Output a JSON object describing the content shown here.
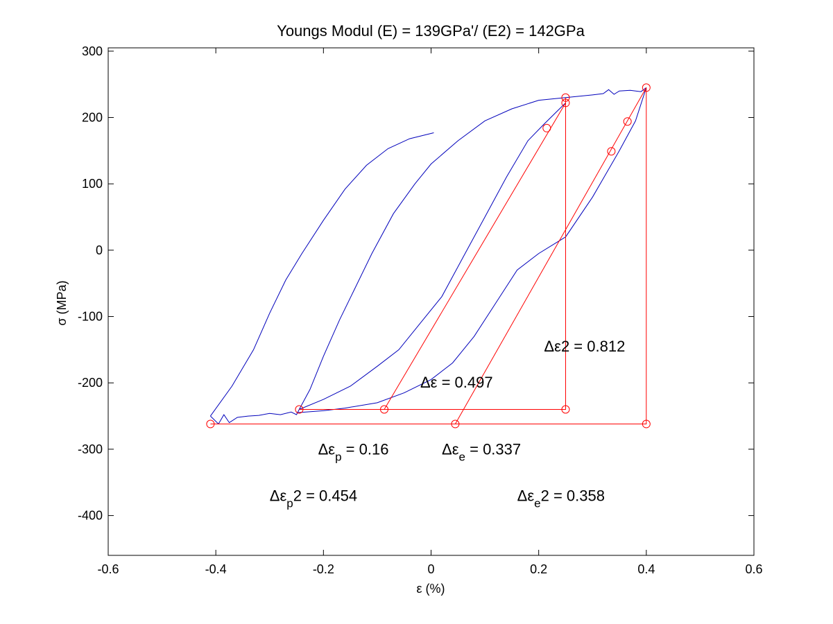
{
  "chart_data": {
    "type": "line",
    "title": "Youngs Modul (E) = 139GPa'/ (E2) = 142GPa",
    "xlabel": "ε (%)",
    "ylabel": "σ (MPa)",
    "xlim": [
      -0.6,
      0.6
    ],
    "ylim": [
      -460,
      305
    ],
    "xticks": [
      -0.6,
      -0.4,
      -0.2,
      0,
      0.2,
      0.4,
      0.6
    ],
    "xtick_labels": [
      "-0.6",
      "-0.4",
      "-0.2",
      "0",
      "0.2",
      "0.4",
      "0.6"
    ],
    "yticks": [
      -400,
      -300,
      -200,
      -100,
      0,
      100,
      200,
      300
    ],
    "ytick_labels": [
      "-400",
      "-300",
      "-200",
      "-100",
      "0",
      "100",
      "200",
      "300"
    ],
    "grid": false,
    "colors": {
      "curve": "#0000bb",
      "construction": "#ff0000"
    },
    "series": [
      {
        "kind": "curve",
        "points": [
          [
            -0.41,
            -250
          ],
          [
            -0.395,
            -262
          ],
          [
            -0.385,
            -248
          ],
          [
            -0.375,
            -260
          ],
          [
            -0.36,
            -252
          ],
          [
            -0.34,
            -250
          ],
          [
            -0.32,
            -249
          ],
          [
            -0.3,
            -246
          ],
          [
            -0.28,
            -248
          ],
          [
            -0.26,
            -244
          ],
          [
            -0.25,
            -248
          ],
          [
            -0.245,
            -240
          ]
        ]
      },
      {
        "kind": "curve",
        "points": [
          [
            -0.41,
            -250
          ],
          [
            -0.37,
            -205
          ],
          [
            -0.33,
            -150
          ],
          [
            -0.3,
            -95
          ],
          [
            -0.27,
            -45
          ],
          [
            -0.24,
            -5
          ],
          [
            -0.2,
            45
          ],
          [
            -0.16,
            92
          ],
          [
            -0.12,
            128
          ],
          [
            -0.08,
            153
          ],
          [
            -0.04,
            168
          ],
          [
            0.005,
            177
          ]
        ]
      },
      {
        "kind": "curve",
        "points": [
          [
            -0.245,
            -240
          ],
          [
            -0.225,
            -210
          ],
          [
            -0.2,
            -160
          ],
          [
            -0.17,
            -105
          ],
          [
            -0.14,
            -55
          ],
          [
            -0.11,
            -5
          ],
          [
            -0.07,
            55
          ],
          [
            -0.03,
            100
          ],
          [
            0.0,
            130
          ],
          [
            0.05,
            165
          ],
          [
            0.1,
            195
          ],
          [
            0.15,
            213
          ],
          [
            0.2,
            226
          ],
          [
            0.25,
            230
          ]
        ]
      },
      {
        "kind": "curve",
        "points": [
          [
            -0.245,
            -240
          ],
          [
            -0.2,
            -225
          ],
          [
            -0.15,
            -205
          ],
          [
            -0.1,
            -175
          ],
          [
            -0.06,
            -150
          ],
          [
            -0.02,
            -110
          ],
          [
            0.02,
            -70
          ],
          [
            0.06,
            -10
          ],
          [
            0.1,
            50
          ],
          [
            0.14,
            110
          ],
          [
            0.18,
            165
          ],
          [
            0.21,
            190
          ],
          [
            0.235,
            210
          ],
          [
            0.25,
            222
          ]
        ]
      },
      {
        "kind": "curve",
        "points": [
          [
            -0.25,
            -245
          ],
          [
            -0.2,
            -242
          ],
          [
            -0.16,
            -238
          ],
          [
            -0.1,
            -230
          ],
          [
            -0.05,
            -215
          ],
          [
            0.0,
            -195
          ],
          [
            0.04,
            -170
          ],
          [
            0.08,
            -130
          ],
          [
            0.12,
            -80
          ],
          [
            0.16,
            -30
          ],
          [
            0.2,
            -5
          ],
          [
            0.25,
            20
          ],
          [
            0.3,
            80
          ],
          [
            0.35,
            150
          ],
          [
            0.38,
            195
          ],
          [
            0.4,
            245
          ]
        ]
      },
      {
        "kind": "curve",
        "points": [
          [
            0.25,
            230
          ],
          [
            0.3,
            234
          ],
          [
            0.32,
            236
          ],
          [
            0.33,
            242
          ],
          [
            0.34,
            235
          ],
          [
            0.35,
            240
          ],
          [
            0.37,
            241
          ],
          [
            0.39,
            239
          ],
          [
            0.4,
            245
          ]
        ]
      },
      {
        "kind": "construction",
        "points": [
          [
            -0.41,
            -262
          ],
          [
            0.4,
            -262
          ],
          [
            0.4,
            245
          ]
        ]
      },
      {
        "kind": "construction",
        "points": [
          [
            -0.245,
            -240
          ],
          [
            0.25,
            -240
          ],
          [
            0.25,
            230
          ]
        ]
      },
      {
        "kind": "construction",
        "points": [
          [
            -0.087,
            -240
          ],
          [
            0.25,
            222
          ]
        ]
      },
      {
        "kind": "construction",
        "points": [
          [
            0.045,
            -262
          ],
          [
            0.4,
            245
          ]
        ]
      }
    ],
    "markers": [
      [
        -0.41,
        -262
      ],
      [
        0.045,
        -262
      ],
      [
        0.4,
        -262
      ],
      [
        -0.245,
        -240
      ],
      [
        -0.087,
        -240
      ],
      [
        0.25,
        -240
      ],
      [
        0.25,
        222
      ],
      [
        0.25,
        230
      ],
      [
        0.215,
        184
      ],
      [
        0.335,
        149
      ],
      [
        0.365,
        194
      ],
      [
        0.4,
        245
      ]
    ],
    "annotations": [
      {
        "prefix": "Δε",
        "sub": "",
        "suffix": "2 = 0.812",
        "x": 0.21,
        "y": -153
      },
      {
        "prefix": "Δε",
        "sub": "",
        "suffix": " = 0.497",
        "x": -0.02,
        "y": -207
      },
      {
        "prefix": "Δε",
        "sub": "p",
        "suffix": " = 0.16",
        "x": -0.21,
        "y": -308
      },
      {
        "prefix": "Δε",
        "sub": "e",
        "suffix": " = 0.337",
        "x": 0.02,
        "y": -308
      },
      {
        "prefix": "Δε",
        "sub": "p",
        "suffix": "2 = 0.454",
        "x": -0.3,
        "y": -378
      },
      {
        "prefix": "Δε",
        "sub": "e",
        "suffix": "2 = 0.358",
        "x": 0.16,
        "y": -378
      }
    ]
  }
}
